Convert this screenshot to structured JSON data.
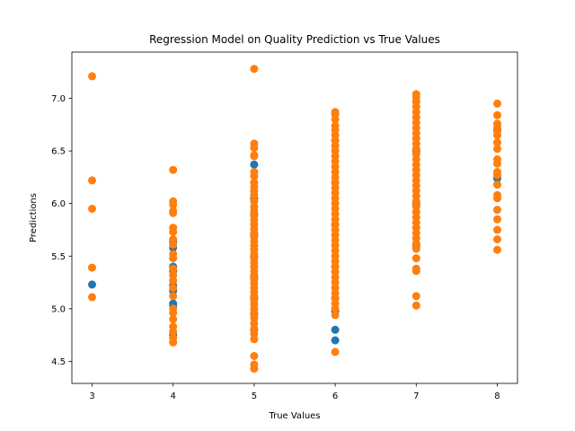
{
  "chart_data": {
    "type": "scatter",
    "title": "Regression Model on Quality Prediction vs True Values",
    "xlabel": "True Values",
    "ylabel": "Predictions",
    "xlim": [
      2.75,
      8.25
    ],
    "ylim": [
      4.29,
      7.44
    ],
    "xticks": [
      3,
      4,
      5,
      6,
      7,
      8
    ],
    "yticks": [
      4.5,
      5.0,
      5.5,
      6.0,
      6.5,
      7.0
    ],
    "ytick_labels": [
      "4.5",
      "5.0",
      "5.5",
      "6.0",
      "6.5",
      "7.0"
    ],
    "grid": false,
    "legend": "none",
    "series": [
      {
        "color": "#1f77b4",
        "points": [
          {
            "x": 3,
            "y": 5.23
          },
          {
            "x": 4,
            "y": 5.64
          },
          {
            "x": 4,
            "y": 5.58
          },
          {
            "x": 4,
            "y": 5.4
          },
          {
            "x": 4,
            "y": 5.36
          },
          {
            "x": 4,
            "y": 5.22
          },
          {
            "x": 4,
            "y": 5.17
          },
          {
            "x": 4,
            "y": 5.05
          },
          {
            "x": 4,
            "y": 5.03
          },
          {
            "x": 4,
            "y": 4.75
          },
          {
            "x": 5,
            "y": 6.37
          },
          {
            "x": 5,
            "y": 6.05
          },
          {
            "x": 5,
            "y": 5.9
          },
          {
            "x": 5,
            "y": 5.7
          },
          {
            "x": 5,
            "y": 5.5
          },
          {
            "x": 5,
            "y": 5.3
          },
          {
            "x": 5,
            "y": 5.1
          },
          {
            "x": 5,
            "y": 4.95
          },
          {
            "x": 5,
            "y": 4.8
          },
          {
            "x": 6,
            "y": 6.6
          },
          {
            "x": 6,
            "y": 6.2
          },
          {
            "x": 6,
            "y": 5.8
          },
          {
            "x": 6,
            "y": 5.4
          },
          {
            "x": 6,
            "y": 5.1
          },
          {
            "x": 6,
            "y": 4.98
          },
          {
            "x": 6,
            "y": 4.8
          },
          {
            "x": 6,
            "y": 4.7
          },
          {
            "x": 7,
            "y": 6.5
          },
          {
            "x": 7,
            "y": 6.0
          },
          {
            "x": 7,
            "y": 5.6
          },
          {
            "x": 8,
            "y": 6.24
          },
          {
            "x": 8,
            "y": 6.7
          }
        ]
      },
      {
        "color": "#ff7f0e",
        "points": [
          {
            "x": 3,
            "y": 7.21
          },
          {
            "x": 3,
            "y": 6.22
          },
          {
            "x": 3,
            "y": 5.95
          },
          {
            "x": 3,
            "y": 5.39
          },
          {
            "x": 3,
            "y": 5.11
          },
          {
            "x": 4,
            "y": 6.32
          },
          {
            "x": 4,
            "y": 6.02
          },
          {
            "x": 4,
            "y": 5.99
          },
          {
            "x": 4,
            "y": 5.93
          },
          {
            "x": 4,
            "y": 5.91
          },
          {
            "x": 4,
            "y": 5.77
          },
          {
            "x": 4,
            "y": 5.73
          },
          {
            "x": 4,
            "y": 5.66
          },
          {
            "x": 4,
            "y": 5.61
          },
          {
            "x": 4,
            "y": 5.52
          },
          {
            "x": 4,
            "y": 5.48
          },
          {
            "x": 4,
            "y": 5.38
          },
          {
            "x": 4,
            "y": 5.32
          },
          {
            "x": 4,
            "y": 5.27
          },
          {
            "x": 4,
            "y": 5.2
          },
          {
            "x": 4,
            "y": 5.12
          },
          {
            "x": 4,
            "y": 5.0
          },
          {
            "x": 4,
            "y": 4.96
          },
          {
            "x": 4,
            "y": 4.9
          },
          {
            "x": 4,
            "y": 4.83
          },
          {
            "x": 4,
            "y": 4.78
          },
          {
            "x": 4,
            "y": 4.72
          },
          {
            "x": 4,
            "y": 4.68
          },
          {
            "x": 5,
            "y": 7.28
          },
          {
            "x": 5,
            "y": 6.57
          },
          {
            "x": 5,
            "y": 6.53
          },
          {
            "x": 5,
            "y": 6.46
          },
          {
            "x": 5,
            "y": 6.45
          },
          {
            "x": 5,
            "y": 6.3
          },
          {
            "x": 5,
            "y": 6.26
          },
          {
            "x": 5,
            "y": 6.2
          },
          {
            "x": 5,
            "y": 6.16
          },
          {
            "x": 5,
            "y": 6.12
          },
          {
            "x": 5,
            "y": 6.08
          },
          {
            "x": 5,
            "y": 6.02
          },
          {
            "x": 5,
            "y": 5.97
          },
          {
            "x": 5,
            "y": 5.93
          },
          {
            "x": 5,
            "y": 5.88
          },
          {
            "x": 5,
            "y": 5.84
          },
          {
            "x": 5,
            "y": 5.8
          },
          {
            "x": 5,
            "y": 5.76
          },
          {
            "x": 5,
            "y": 5.72
          },
          {
            "x": 5,
            "y": 5.68
          },
          {
            "x": 5,
            "y": 5.64
          },
          {
            "x": 5,
            "y": 5.6
          },
          {
            "x": 5,
            "y": 5.56
          },
          {
            "x": 5,
            "y": 5.52
          },
          {
            "x": 5,
            "y": 5.48
          },
          {
            "x": 5,
            "y": 5.44
          },
          {
            "x": 5,
            "y": 5.4
          },
          {
            "x": 5,
            "y": 5.36
          },
          {
            "x": 5,
            "y": 5.32
          },
          {
            "x": 5,
            "y": 5.28
          },
          {
            "x": 5,
            "y": 5.24
          },
          {
            "x": 5,
            "y": 5.2
          },
          {
            "x": 5,
            "y": 5.16
          },
          {
            "x": 5,
            "y": 5.12
          },
          {
            "x": 5,
            "y": 5.08
          },
          {
            "x": 5,
            "y": 5.04
          },
          {
            "x": 5,
            "y": 5.0
          },
          {
            "x": 5,
            "y": 4.96
          },
          {
            "x": 5,
            "y": 4.91
          },
          {
            "x": 5,
            "y": 4.86
          },
          {
            "x": 5,
            "y": 4.81
          },
          {
            "x": 5,
            "y": 4.76
          },
          {
            "x": 5,
            "y": 4.71
          },
          {
            "x": 5,
            "y": 4.55
          },
          {
            "x": 5,
            "y": 4.47
          },
          {
            "x": 5,
            "y": 4.43
          },
          {
            "x": 6,
            "y": 6.87
          },
          {
            "x": 6,
            "y": 6.85
          },
          {
            "x": 6,
            "y": 6.8
          },
          {
            "x": 6,
            "y": 6.74
          },
          {
            "x": 6,
            "y": 6.7
          },
          {
            "x": 6,
            "y": 6.65
          },
          {
            "x": 6,
            "y": 6.6
          },
          {
            "x": 6,
            "y": 6.55
          },
          {
            "x": 6,
            "y": 6.5
          },
          {
            "x": 6,
            "y": 6.45
          },
          {
            "x": 6,
            "y": 6.4
          },
          {
            "x": 6,
            "y": 6.35
          },
          {
            "x": 6,
            "y": 6.3
          },
          {
            "x": 6,
            "y": 6.25
          },
          {
            "x": 6,
            "y": 6.2
          },
          {
            "x": 6,
            "y": 6.15
          },
          {
            "x": 6,
            "y": 6.1
          },
          {
            "x": 6,
            "y": 6.05
          },
          {
            "x": 6,
            "y": 6.0
          },
          {
            "x": 6,
            "y": 5.95
          },
          {
            "x": 6,
            "y": 5.9
          },
          {
            "x": 6,
            "y": 5.85
          },
          {
            "x": 6,
            "y": 5.8
          },
          {
            "x": 6,
            "y": 5.75
          },
          {
            "x": 6,
            "y": 5.7
          },
          {
            "x": 6,
            "y": 5.65
          },
          {
            "x": 6,
            "y": 5.6
          },
          {
            "x": 6,
            "y": 5.55
          },
          {
            "x": 6,
            "y": 5.5
          },
          {
            "x": 6,
            "y": 5.45
          },
          {
            "x": 6,
            "y": 5.4
          },
          {
            "x": 6,
            "y": 5.35
          },
          {
            "x": 6,
            "y": 5.3
          },
          {
            "x": 6,
            "y": 5.25
          },
          {
            "x": 6,
            "y": 5.2
          },
          {
            "x": 6,
            "y": 5.15
          },
          {
            "x": 6,
            "y": 5.1
          },
          {
            "x": 6,
            "y": 5.05
          },
          {
            "x": 6,
            "y": 5.0
          },
          {
            "x": 6,
            "y": 4.94
          },
          {
            "x": 6,
            "y": 4.59
          },
          {
            "x": 7,
            "y": 7.04
          },
          {
            "x": 7,
            "y": 7.01
          },
          {
            "x": 7,
            "y": 6.97
          },
          {
            "x": 7,
            "y": 6.92
          },
          {
            "x": 7,
            "y": 6.87
          },
          {
            "x": 7,
            "y": 6.82
          },
          {
            "x": 7,
            "y": 6.77
          },
          {
            "x": 7,
            "y": 6.72
          },
          {
            "x": 7,
            "y": 6.67
          },
          {
            "x": 7,
            "y": 6.62
          },
          {
            "x": 7,
            "y": 6.57
          },
          {
            "x": 7,
            "y": 6.52
          },
          {
            "x": 7,
            "y": 6.47
          },
          {
            "x": 7,
            "y": 6.42
          },
          {
            "x": 7,
            "y": 6.37
          },
          {
            "x": 7,
            "y": 6.32
          },
          {
            "x": 7,
            "y": 6.27
          },
          {
            "x": 7,
            "y": 6.22
          },
          {
            "x": 7,
            "y": 6.17
          },
          {
            "x": 7,
            "y": 6.12
          },
          {
            "x": 7,
            "y": 6.07
          },
          {
            "x": 7,
            "y": 6.02
          },
          {
            "x": 7,
            "y": 5.97
          },
          {
            "x": 7,
            "y": 5.92
          },
          {
            "x": 7,
            "y": 5.87
          },
          {
            "x": 7,
            "y": 5.82
          },
          {
            "x": 7,
            "y": 5.77
          },
          {
            "x": 7,
            "y": 5.72
          },
          {
            "x": 7,
            "y": 5.67
          },
          {
            "x": 7,
            "y": 5.62
          },
          {
            "x": 7,
            "y": 5.57
          },
          {
            "x": 7,
            "y": 5.48
          },
          {
            "x": 7,
            "y": 5.38
          },
          {
            "x": 7,
            "y": 5.36
          },
          {
            "x": 7,
            "y": 5.12
          },
          {
            "x": 7,
            "y": 5.03
          },
          {
            "x": 8,
            "y": 6.95
          },
          {
            "x": 8,
            "y": 6.84
          },
          {
            "x": 8,
            "y": 6.76
          },
          {
            "x": 8,
            "y": 6.72
          },
          {
            "x": 8,
            "y": 6.69
          },
          {
            "x": 8,
            "y": 6.65
          },
          {
            "x": 8,
            "y": 6.58
          },
          {
            "x": 8,
            "y": 6.52
          },
          {
            "x": 8,
            "y": 6.42
          },
          {
            "x": 8,
            "y": 6.38
          },
          {
            "x": 8,
            "y": 6.3
          },
          {
            "x": 8,
            "y": 6.27
          },
          {
            "x": 8,
            "y": 6.18
          },
          {
            "x": 8,
            "y": 6.08
          },
          {
            "x": 8,
            "y": 6.05
          },
          {
            "x": 8,
            "y": 5.94
          },
          {
            "x": 8,
            "y": 5.85
          },
          {
            "x": 8,
            "y": 5.75
          },
          {
            "x": 8,
            "y": 5.66
          },
          {
            "x": 8,
            "y": 5.56
          }
        ]
      }
    ]
  }
}
